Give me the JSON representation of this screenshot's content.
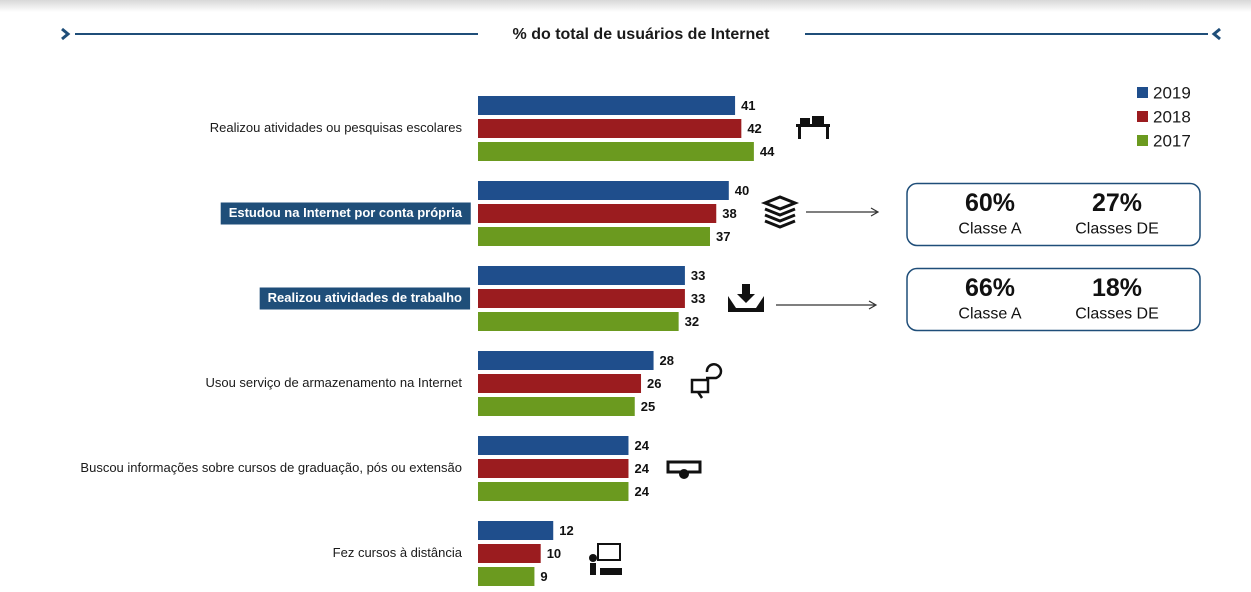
{
  "chart_data": {
    "type": "bar",
    "orientation": "horizontal",
    "title": "% do total de usuários de Internet",
    "categories": [
      "Realizou atividades ou pesquisas escolares",
      "Estudou na Internet por conta própria",
      "Realizou atividades de trabalho",
      "Usou serviço de armazenamento na Internet",
      "Buscou informações sobre cursos de graduação, pós ou extensão",
      "Fez cursos à distância"
    ],
    "highlighted": [
      false,
      true,
      true,
      false,
      false,
      false
    ],
    "series": [
      {
        "name": "2019",
        "color": "#1f4e8c",
        "values": [
          41,
          40,
          33,
          28,
          24,
          12
        ]
      },
      {
        "name": "2018",
        "color": "#9b1c1f",
        "values": [
          42,
          38,
          33,
          26,
          24,
          10
        ]
      },
      {
        "name": "2017",
        "color": "#6b9a1f",
        "values": [
          44,
          37,
          32,
          25,
          24,
          9
        ]
      }
    ],
    "callouts": [
      [
        {
          "value": "60%",
          "label": "Classe A"
        },
        {
          "value": "27%",
          "label": "Classes DE"
        }
      ],
      [
        {
          "value": "66%",
          "label": "Classe A"
        },
        {
          "value": "18%",
          "label": "Classes DE"
        }
      ]
    ],
    "legend": "top-right"
  }
}
